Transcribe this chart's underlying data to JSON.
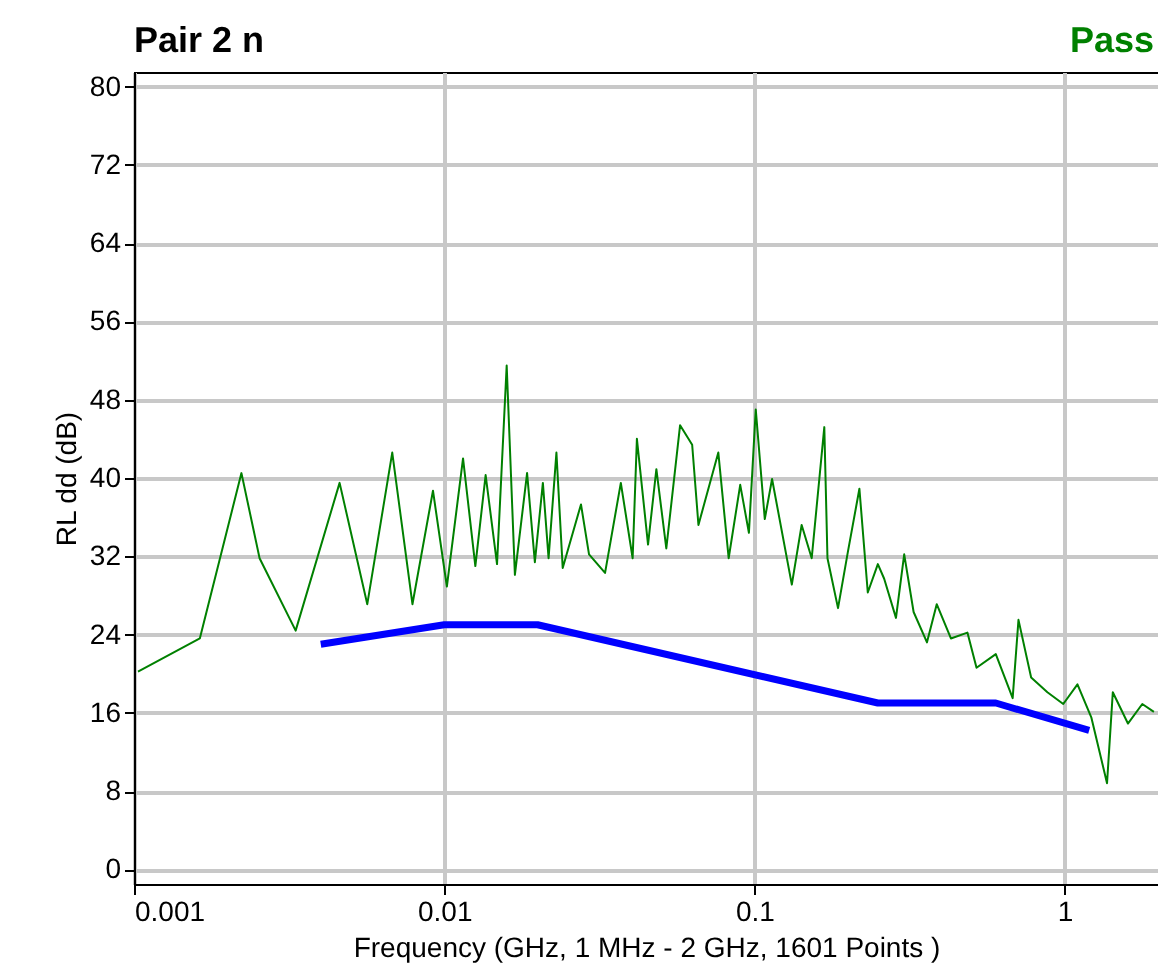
{
  "chart_data": {
    "type": "line",
    "title": "Pair 2 n",
    "xlabel": "Frequency (GHz, 1 MHz - 2 GHz, 1601 Points )",
    "ylabel": "RL dd (dB)",
    "annotations": [
      "Pass"
    ],
    "log": "x",
    "grid": true,
    "xlim": [
      0.001,
      2
    ],
    "xticks": [
      0.001,
      0.01,
      0.1,
      1
    ],
    "ylim": [
      -1.5,
      81.5
    ],
    "yticks": [
      0,
      8,
      16,
      24,
      32,
      40,
      48,
      56,
      64,
      72,
      80
    ],
    "series": [
      {
        "color": "#008000",
        "x": [
          0.00103,
          0.00163,
          0.00222,
          0.00254,
          0.00332,
          0.0046,
          0.00565,
          0.0068,
          0.0079,
          0.0092,
          0.0102,
          0.0115,
          0.0126,
          0.0136,
          0.0148,
          0.0159,
          0.0169,
          0.0185,
          0.0196,
          0.0208,
          0.0217,
          0.023,
          0.0241,
          0.0276,
          0.0293,
          0.033,
          0.0371,
          0.0405,
          0.0418,
          0.0454,
          0.0483,
          0.052,
          0.0576,
          0.063,
          0.066,
          0.0765,
          0.0826,
          0.09,
          0.096,
          0.101,
          0.108,
          0.114,
          0.132,
          0.142,
          0.153,
          0.168,
          0.172,
          0.186,
          0.2,
          0.218,
          0.232,
          0.25,
          0.262,
          0.286,
          0.304,
          0.326,
          0.36,
          0.387,
          0.43,
          0.486,
          0.52,
          0.6,
          0.68,
          0.71,
          0.78,
          0.88,
          0.99,
          1.1,
          1.22,
          1.37,
          1.43,
          1.6,
          1.78,
          1.94
        ],
        "values": [
          20.2,
          23.6,
          40.5,
          31.8,
          24.4,
          39.5,
          27.1,
          42.6,
          27.1,
          38.7,
          28.9,
          42,
          31,
          40.3,
          31.2,
          51.5,
          30.1,
          40.5,
          31.4,
          39.5,
          31.8,
          42.6,
          30.8,
          37.3,
          32.2,
          30.3,
          39.5,
          31.8,
          44,
          33.2,
          40.9,
          32.8,
          45.4,
          43.4,
          35.2,
          42.6,
          31.8,
          39.3,
          34.4,
          47,
          35.8,
          39.9,
          29.1,
          35.2,
          31.8,
          45.2,
          31.8,
          26.7,
          32.4,
          38.9,
          28.3,
          31.2,
          29.7,
          25.7,
          32.2,
          26.3,
          23.2,
          27.1,
          23.6,
          24.2,
          20.6,
          22,
          17.5,
          25.5,
          19.6,
          18.1,
          16.9,
          18.9,
          15.5,
          8.8,
          18.1,
          14.9,
          16.9,
          16.1
        ]
      },
      {
        "color": "#0000ff",
        "x": [
          0.004,
          0.01,
          0.02,
          0.25,
          0.6,
          1.2
        ],
        "values": [
          23,
          25,
          25,
          17,
          17,
          14.2
        ]
      }
    ]
  }
}
